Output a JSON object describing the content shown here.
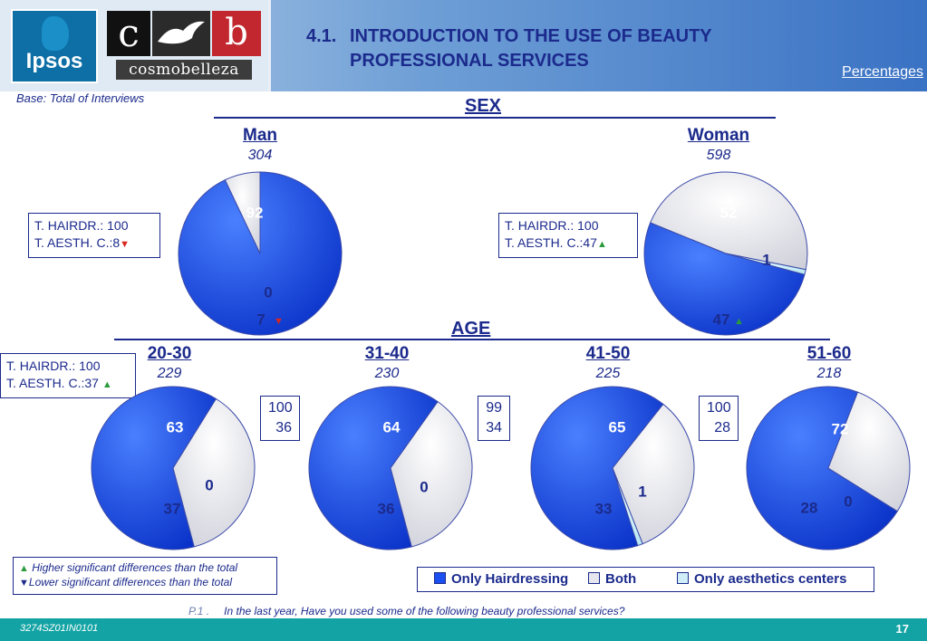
{
  "header": {
    "ipsos_logo": "Ipsos",
    "brand_logo_top": "c b",
    "brand_logo_bottom": "cosmobelleza",
    "title_number": "4.1.",
    "title_line1": "INTRODUCTION TO THE USE OF BEAUTY",
    "title_line2": "PROFESSIONAL SERVICES",
    "units": "Percentages"
  },
  "base": "Base: Total of Interviews",
  "sections": {
    "sex": "SEX",
    "age": "AGE"
  },
  "colors": {
    "hairdressing": "#1b4ff0",
    "both": "#e6e6ee",
    "aesthetics": "#cfeef7",
    "accent": "#1b2a8c",
    "up": "#2a9a3a",
    "down": "#d8271f"
  },
  "groups": [
    {
      "name": "Man",
      "n": "304",
      "totals": {
        "hair_label": "T. HAIRDR.:",
        "hair": "100",
        "aesth_label": "T. AESTH. C.:",
        "aesth": "8",
        "sig": "down"
      }
    },
    {
      "name": "Woman",
      "n": "598",
      "totals": {
        "hair_label": "T. HAIRDR.:",
        "hair": "100",
        "aesth_label": "T. AESTH. C.:",
        "aesth": "47",
        "sig": "up"
      }
    },
    {
      "name": "20-30",
      "n": "229",
      "totals": {
        "hair_label": "T. HAIRDR.:",
        "hair": "100",
        "aesth_label": "T. AESTH. C.:",
        "aesth": "37",
        "sig": "up"
      }
    },
    {
      "name": "31-40",
      "n": "230",
      "totals": {
        "hair": "100",
        "aesth": "36"
      }
    },
    {
      "name": "41-50",
      "n": "225",
      "totals": {
        "hair": "99",
        "aesth": "34"
      }
    },
    {
      "name": "51-60",
      "n": "218",
      "totals": {
        "hair": "100",
        "aesth": "28"
      }
    }
  ],
  "chart_data": [
    {
      "type": "pie",
      "group": "Man",
      "categories": [
        "Only Hairdressing",
        "Both",
        "Only aesthetics centers"
      ],
      "values": [
        92,
        7,
        0
      ],
      "significance": {
        "Both": "down"
      }
    },
    {
      "type": "pie",
      "group": "Woman",
      "categories": [
        "Only Hairdressing",
        "Both",
        "Only aesthetics centers"
      ],
      "values": [
        52,
        47,
        1
      ],
      "significance": {
        "Both": "up"
      }
    },
    {
      "type": "pie",
      "group": "20-30",
      "categories": [
        "Only Hairdressing",
        "Both",
        "Only aesthetics centers"
      ],
      "values": [
        63,
        37,
        0
      ]
    },
    {
      "type": "pie",
      "group": "31-40",
      "categories": [
        "Only Hairdressing",
        "Both",
        "Only aesthetics centers"
      ],
      "values": [
        64,
        36,
        0
      ]
    },
    {
      "type": "pie",
      "group": "41-50",
      "categories": [
        "Only Hairdressing",
        "Both",
        "Only aesthetics centers"
      ],
      "values": [
        65,
        33,
        1
      ]
    },
    {
      "type": "pie",
      "group": "51-60",
      "categories": [
        "Only Hairdressing",
        "Both",
        "Only aesthetics centers"
      ],
      "values": [
        72,
        28,
        0
      ]
    }
  ],
  "legend": {
    "items": [
      "Only Hairdressing",
      "Both",
      "Only aesthetics centers"
    ]
  },
  "notes": {
    "higher": "Higher significant differences than the total",
    "lower": "Lower significant differences than the total"
  },
  "question": {
    "prefix": "P.1 .",
    "text": "In the last year, Have you used some of the following beauty professional services?"
  },
  "footer": {
    "code": "3274SZ01IN0101",
    "page": "17"
  }
}
